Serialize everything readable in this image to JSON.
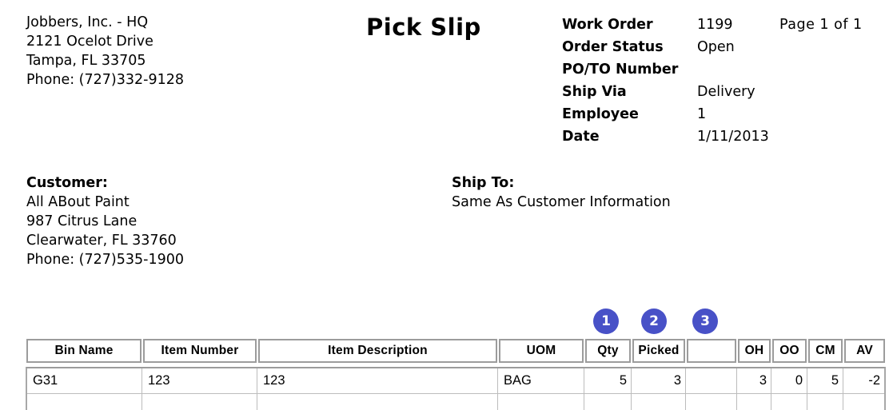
{
  "document": {
    "title": "Pick Slip",
    "page_indicator": "Page 1 of 1"
  },
  "company": {
    "name": "Jobbers, Inc. - HQ",
    "address": "2121 Ocelot Drive",
    "city_state_zip": "Tampa, FL 33705",
    "phone": "Phone: (727)332-9128"
  },
  "order_info": {
    "rows": [
      {
        "label": "Work Order",
        "value": "1199"
      },
      {
        "label": "Order Status",
        "value": "Open"
      },
      {
        "label": "PO/TO Number",
        "value": ""
      },
      {
        "label": "Ship Via",
        "value": "Delivery"
      },
      {
        "label": "Employee",
        "value": "1"
      },
      {
        "label": "Date",
        "value": "1/11/2013"
      }
    ]
  },
  "customer": {
    "heading": "Customer:",
    "lines": [
      "All ABout Paint",
      "987 Citrus Lane",
      "Clearwater, FL 33760",
      "Phone: (727)535-1900"
    ]
  },
  "ship_to": {
    "heading": "Ship To:",
    "line": "Same As Customer Information"
  },
  "badges": [
    "1",
    "2",
    "3"
  ],
  "badge_color": "#4851c7",
  "table": {
    "headers": [
      "Bin Name",
      "Item Number",
      "Item Description",
      "UOM",
      "Qty",
      "Picked",
      "",
      "OH",
      "OO",
      "CM",
      "AV"
    ],
    "rows": [
      [
        "G31",
        "123",
        "123",
        "BAG",
        "5",
        "3",
        "",
        "3",
        "0",
        "5",
        "-2"
      ]
    ]
  }
}
